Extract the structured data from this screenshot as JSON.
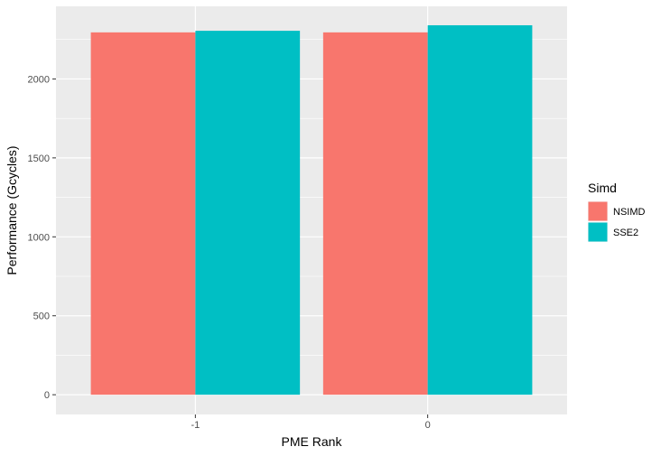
{
  "chart_data": {
    "type": "bar",
    "title": "",
    "xlabel": "PME Rank",
    "ylabel": "Performance (Gcycles)",
    "categories": [
      "-1",
      "0"
    ],
    "series": [
      {
        "name": "NSIMD",
        "color": "#F8766D",
        "values": [
          2295,
          2295
        ]
      },
      {
        "name": "SSE2",
        "color": "#00BFC4",
        "values": [
          2305,
          2340
        ]
      }
    ],
    "ylim": [
      -125,
      2460
    ],
    "yticks": [
      0,
      500,
      1000,
      1500,
      2000
    ],
    "ytick_labels": [
      "0",
      "500",
      "1000",
      "1500",
      "2000"
    ],
    "grid": true,
    "legend": {
      "title": "Simd",
      "position": "right"
    },
    "colors": {
      "panel_background": "#EBEBEB",
      "grid": "#FFFFFF"
    }
  }
}
